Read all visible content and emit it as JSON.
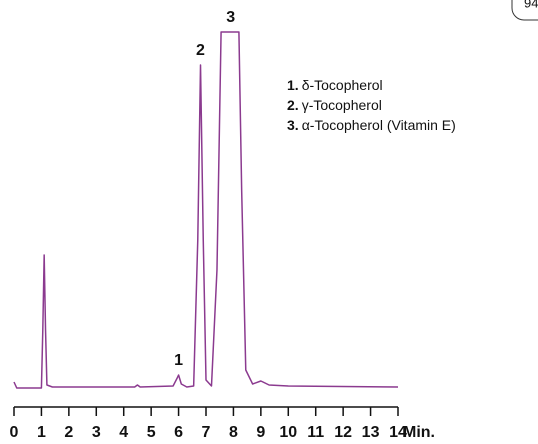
{
  "chart_data": {
    "type": "line",
    "badge": "94",
    "x_label": "Min.",
    "color": "#8b3a8f",
    "x": [
      0,
      0.1,
      1.0,
      1.05,
      1.1,
      1.15,
      1.2,
      1.4,
      3.0,
      4.4,
      4.5,
      4.6,
      5.8,
      5.95,
      6.0,
      6.1,
      6.3,
      6.55,
      6.7,
      6.8,
      6.9,
      7.0,
      7.2,
      7.4,
      7.55,
      8.2,
      8.3,
      8.45,
      8.7,
      9.0,
      9.3,
      10,
      14
    ],
    "values": [
      8,
      2,
      2,
      60,
      135,
      60,
      5,
      3,
      3,
      3,
      5,
      3,
      4,
      12,
      15,
      6,
      3,
      4,
      150,
      325,
      150,
      10,
      4,
      120,
      358,
      358,
      200,
      20,
      6,
      9,
      5,
      4,
      3
    ],
    "xlim": [
      0,
      14
    ],
    "xticks": [
      0,
      1,
      2,
      3,
      4,
      5,
      6,
      7,
      8,
      9,
      10,
      11,
      12,
      13,
      14
    ],
    "peaks": [
      {
        "label": "1",
        "x": 6.0
      },
      {
        "label": "2",
        "x": 6.8
      },
      {
        "label": "3",
        "x": 7.9
      }
    ],
    "legend": [
      {
        "number": "1.",
        "name": "δ-Tocopherol"
      },
      {
        "number": "2.",
        "name": "γ-Tocopherol"
      },
      {
        "number": "3.",
        "name": "α-Tocopherol (Vitamin E)"
      }
    ]
  }
}
